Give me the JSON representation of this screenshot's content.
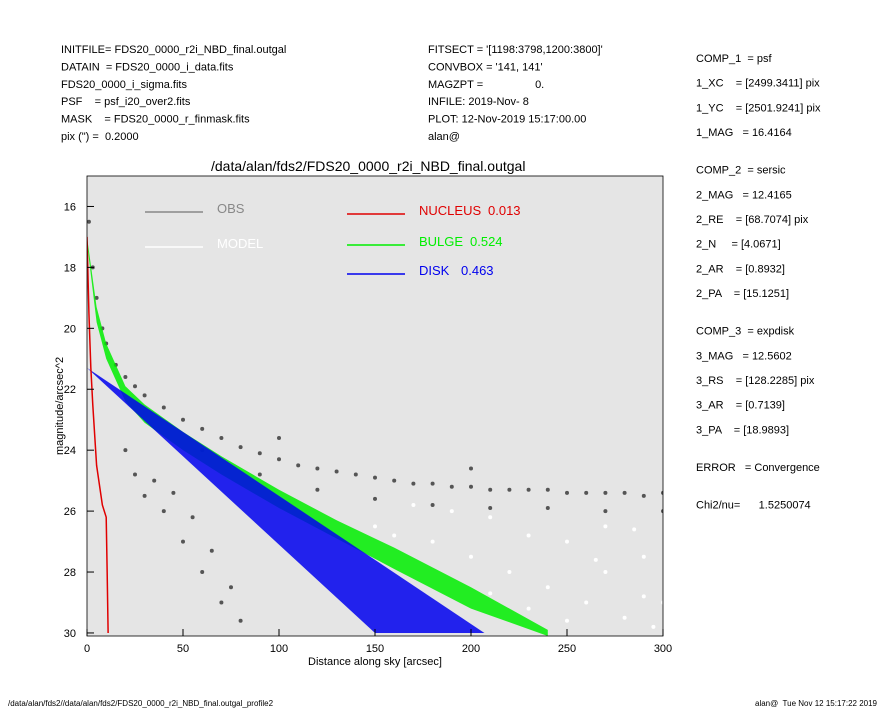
{
  "header": {
    "left": [
      "INITFILE= FDS20_0000_r2i_NBD_final.outgal",
      "DATAIN  = FDS20_0000_i_data.fits",
      "FDS20_0000_i_sigma.fits",
      "PSF    = psf_i20_over2.fits",
      "MASK    = FDS20_0000_r_finmask.fits",
      "pix (\") =  0.2000"
    ],
    "middle": [
      "FITSECT = '[1198:3798,1200:3800]'",
      "CONVBOX = '141, 141'",
      "MAGZPT =                 0.",
      "INFILE: 2019-Nov- 8",
      "PLOT: 12-Nov-2019 15:17:00.00",
      "alan@"
    ],
    "right": [
      [
        "COMP_1  = psf",
        "1_XC    = [2499.3411] pix",
        "1_YC    = [2501.9241] pix",
        "1_MAG   = 16.4164"
      ],
      [
        "COMP_2  = sersic",
        "2_MAG   = 12.4165",
        "2_RE    = [68.7074] pix",
        "2_N     = [4.0671]",
        "2_AR    = [0.8932]",
        "2_PA    = [15.1251]"
      ],
      [
        "COMP_3  = expdisk",
        "3_MAG   = 12.5602",
        "3_RS    = [128.2285] pix",
        "3_AR    = [0.7139]",
        "3_PA    = [18.9893]"
      ],
      [
        "ERROR   = Convergence"
      ],
      [
        "Chi2/nu=      1.5250074"
      ]
    ]
  },
  "footer": {
    "left": "/data/alan/fds2//data/alan/fds2/FDS20_0000_r2i_NBD_final.outgal_profile2",
    "right": "alan@  Tue Nov 12 15:17:22 2019"
  },
  "chart_data": {
    "type": "scatter",
    "title": "/data/alan/fds2/FDS20_0000_r2i_NBD_final.outgal",
    "x_label": "Distance along sky [arcsec]",
    "y_label": "magnitude/arcsec^2",
    "xlim": [
      0,
      300
    ],
    "ylim": [
      30.1,
      15.0
    ],
    "xticks": [
      0,
      50,
      100,
      150,
      200,
      250,
      300
    ],
    "yticks": [
      16,
      18,
      20,
      22,
      24,
      26,
      28,
      30
    ],
    "background": "#e5e5e5",
    "series": [
      {
        "name": "OBS",
        "color": "#555555",
        "style": "points",
        "x": [
          1,
          3,
          5,
          8,
          10,
          15,
          20,
          25,
          30,
          40,
          50,
          60,
          70,
          80,
          90,
          100,
          110,
          120,
          130,
          140,
          150,
          160,
          170,
          180,
          190,
          200,
          210,
          220,
          230,
          240,
          250,
          260,
          270,
          280,
          290,
          300,
          20,
          25,
          30,
          35,
          40,
          45,
          50,
          55,
          60,
          65,
          70,
          75,
          80,
          60,
          90,
          120,
          150,
          180,
          210,
          240,
          270,
          300,
          100,
          200
        ],
        "values": [
          16.5,
          18,
          19,
          20,
          20.5,
          21.2,
          21.6,
          21.9,
          22.2,
          22.6,
          23,
          23.3,
          23.6,
          23.9,
          24.1,
          24.3,
          24.5,
          24.6,
          24.7,
          24.8,
          24.9,
          25,
          25.1,
          25.1,
          25.2,
          25.2,
          25.3,
          25.3,
          25.3,
          25.3,
          25.4,
          25.4,
          25.4,
          25.4,
          25.5,
          25.4,
          24,
          24.8,
          25.5,
          25,
          26,
          25.4,
          27,
          26.2,
          28,
          27.3,
          29,
          28.5,
          29.6,
          24,
          24.8,
          25.3,
          25.6,
          25.8,
          25.9,
          25.9,
          26,
          26,
          23.6,
          24.6
        ]
      },
      {
        "name": "MODEL",
        "color": "#ffffff",
        "style": "points",
        "x": [
          150,
          160,
          170,
          180,
          190,
          200,
          210,
          220,
          230,
          240,
          250,
          260,
          270,
          280,
          290,
          300,
          250,
          270,
          290,
          230,
          210,
          265,
          285,
          295
        ],
        "values": [
          26.5,
          26.8,
          25.8,
          27,
          26,
          27.5,
          26.2,
          28,
          26.8,
          28.5,
          27,
          29,
          26.5,
          29.5,
          27.5,
          29,
          29.6,
          28,
          28.8,
          29.2,
          28.7,
          27.6,
          26.6,
          29.8
        ]
      },
      {
        "name": "NUCLEUS",
        "fraction": 0.013,
        "color": "#e00000",
        "style": "line",
        "x": [
          0,
          1,
          2,
          3,
          5,
          8,
          10,
          10.5,
          11
        ],
        "values": [
          17,
          19.5,
          21.3,
          22.5,
          24.5,
          25.8,
          26.2,
          28,
          30
        ]
      },
      {
        "name": "BULGE",
        "fraction": 0.524,
        "color": "#00ee00",
        "style": "band",
        "x": [
          0,
          5,
          10,
          20,
          30,
          50,
          70,
          100,
          130,
          160,
          200,
          240
        ],
        "values": [
          17,
          19.3,
          20.5,
          21.9,
          22.5,
          23.4,
          24.2,
          25.3,
          26.3,
          27.2,
          28.5,
          29.9
        ],
        "values_faint": [
          17.2,
          19.8,
          21,
          22.4,
          23.1,
          24,
          24.8,
          25.9,
          26.9,
          27.9,
          29.2,
          30.1
        ]
      },
      {
        "name": "DISK",
        "fraction": 0.463,
        "color": "#0000ee",
        "style": "band",
        "x": [
          0,
          150,
          207
        ],
        "values": [
          21.3,
          27.6,
          30
        ],
        "values_faint": [
          21.3,
          30,
          30
        ]
      }
    ]
  }
}
